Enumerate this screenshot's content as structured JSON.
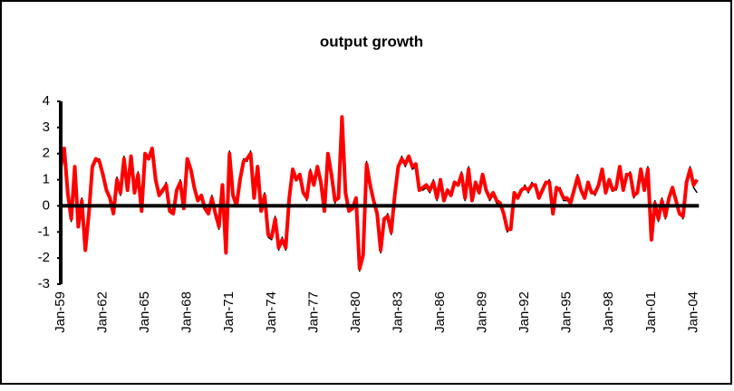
{
  "chart_data": {
    "type": "line",
    "title": "output growth",
    "categories": [
      "Jan-59",
      null,
      null,
      null,
      null,
      null,
      null,
      null,
      null,
      null,
      null,
      null,
      "Jan-62",
      null,
      null,
      null,
      null,
      null,
      null,
      null,
      null,
      null,
      null,
      null,
      "Jan-65",
      null,
      null,
      null,
      null,
      null,
      null,
      null,
      null,
      null,
      null,
      null,
      "Jan-68",
      null,
      null,
      null,
      null,
      null,
      null,
      null,
      null,
      null,
      null,
      null,
      "Jan-71",
      null,
      null,
      null,
      null,
      null,
      null,
      null,
      null,
      null,
      null,
      null,
      "Jan-74",
      null,
      null,
      null,
      null,
      null,
      null,
      null,
      null,
      null,
      null,
      null,
      "Jan-77",
      null,
      null,
      null,
      null,
      null,
      null,
      null,
      null,
      null,
      null,
      null,
      "Jan-80",
      null,
      null,
      null,
      null,
      null,
      null,
      null,
      null,
      null,
      null,
      null,
      "Jan-83",
      null,
      null,
      null,
      null,
      null,
      null,
      null,
      null,
      null,
      null,
      null,
      "Jan-86",
      null,
      null,
      null,
      null,
      null,
      null,
      null,
      null,
      null,
      null,
      null,
      "Jan-89",
      null,
      null,
      null,
      null,
      null,
      null,
      null,
      null,
      null,
      null,
      null,
      "Jan-92",
      null,
      null,
      null,
      null,
      null,
      null,
      null,
      null,
      null,
      null,
      null,
      "Jan-95",
      null,
      null,
      null,
      null,
      null,
      null,
      null,
      null,
      null,
      null,
      null,
      "Jan-98",
      null,
      null,
      null,
      null,
      null,
      null,
      null,
      null,
      null,
      null,
      null,
      "Jan-01",
      null,
      null,
      null,
      null,
      null,
      null,
      null,
      null,
      null,
      null,
      null,
      "Jan-04",
      null
    ],
    "series": [
      {
        "color": "#000000",
        "values": [
          1.7,
          2.1,
          0.4,
          -0.6,
          1.4,
          -0.7,
          0.3,
          -1.6,
          -0.2,
          1.4,
          1.7,
          1.8,
          1.3,
          0.7,
          0.2,
          -0.2,
          1.1,
          0.4,
          1.9,
          0.7,
          1.8,
          0.6,
          1.3,
          -0.1,
          1.9,
          1.9,
          2.1,
          1.1,
          0.5,
          0.5,
          0.9,
          -0.1,
          -0.2,
          0.5,
          1.0,
          0.0,
          1.7,
          1.5,
          0.6,
          0.3,
          0.3,
          0.0,
          -0.2,
          0.4,
          -0.4,
          -0.9,
          0.7,
          -1.7,
          2.1,
          0.5,
          0.1,
          0.9,
          1.8,
          1.7,
          2.1,
          0.4,
          1.4,
          -0.1,
          0.5,
          -1.2,
          -1.3,
          -0.4,
          -1.7,
          -1.2,
          -1.7,
          0.4,
          1.3,
          1.1,
          1.1,
          0.6,
          0.2,
          1.4,
          0.9,
          1.4,
          1.0,
          -0.1,
          1.9,
          1.3,
          0.1,
          0.4,
          3.3,
          0.6,
          -0.1,
          0.0,
          0.2,
          -2.5,
          -1.8,
          1.7,
          0.7,
          0.3,
          -0.2,
          -1.8,
          -0.6,
          -0.3,
          -1.1,
          0.5,
          1.4,
          1.9,
          1.5,
          1.8,
          1.4,
          1.5,
          0.7,
          0.6,
          0.7,
          0.5,
          1.0,
          0.2,
          0.9,
          0.3,
          0.5,
          0.5,
          0.8,
          0.9,
          1.3,
          0.2,
          1.5,
          0.3,
          0.8,
          0.6,
          1.1,
          0.7,
          0.2,
          0.4,
          0.1,
          0.0,
          -0.4,
          -1.0,
          -0.8,
          0.4,
          0.4,
          0.5,
          0.8,
          0.5,
          0.9,
          0.7,
          0.4,
          0.5,
          0.8,
          1.0,
          -0.2,
          0.6,
          0.7,
          0.2,
          0.2,
          0.2,
          0.5,
          1.2,
          0.5,
          0.4,
          0.8,
          0.6,
          0.4,
          0.9,
          1.3,
          0.6,
          0.9,
          0.7,
          0.6,
          1.4,
          0.7,
          1.1,
          1.3,
          0.3,
          0.6,
          1.3,
          0.7,
          1.5,
          -1.2,
          0.2,
          -0.6,
          0.3,
          -0.5,
          0.2,
          0.6,
          0.3,
          -0.2,
          -0.5,
          0.8,
          1.5,
          0.7,
          0.5
        ]
      },
      {
        "color": "#ff0000",
        "values": [
          1.5,
          2.2,
          0.5,
          -0.5,
          1.5,
          -0.8,
          0.2,
          -1.7,
          -0.3,
          1.5,
          1.8,
          1.7,
          1.2,
          0.6,
          0.3,
          -0.3,
          1.0,
          0.5,
          1.8,
          0.6,
          1.9,
          0.5,
          1.2,
          -0.2,
          2.0,
          1.8,
          2.2,
          1.0,
          0.4,
          0.6,
          0.8,
          -0.2,
          -0.3,
          0.6,
          0.9,
          -0.1,
          1.8,
          1.4,
          0.7,
          0.2,
          0.4,
          -0.1,
          -0.3,
          0.3,
          -0.3,
          -0.8,
          0.8,
          -1.8,
          2.0,
          0.4,
          0.0,
          1.0,
          1.7,
          1.8,
          2.0,
          0.3,
          1.5,
          -0.2,
          0.4,
          -1.1,
          -1.2,
          -0.5,
          -1.6,
          -1.3,
          -1.6,
          0.3,
          1.4,
          1.0,
          1.2,
          0.5,
          0.3,
          1.3,
          0.8,
          1.5,
          0.9,
          -0.2,
          2.0,
          1.2,
          0.2,
          0.3,
          3.4,
          0.5,
          -0.2,
          -0.1,
          0.3,
          -2.4,
          -1.9,
          1.6,
          0.8,
          0.2,
          -0.3,
          -1.7,
          -0.5,
          -0.4,
          -1.0,
          0.4,
          1.5,
          1.8,
          1.6,
          1.9,
          1.5,
          1.6,
          0.6,
          0.7,
          0.8,
          0.6,
          0.9,
          0.3,
          1.0,
          0.2,
          0.6,
          0.4,
          0.9,
          0.8,
          1.2,
          0.3,
          1.4,
          0.2,
          0.9,
          0.5,
          1.2,
          0.6,
          0.3,
          0.5,
          0.2,
          0.1,
          -0.3,
          -0.9,
          -0.9,
          0.5,
          0.3,
          0.6,
          0.7,
          0.6,
          0.8,
          0.8,
          0.3,
          0.6,
          0.9,
          0.9,
          -0.3,
          0.7,
          0.6,
          0.3,
          0.3,
          0.1,
          0.6,
          1.1,
          0.6,
          0.3,
          0.9,
          0.5,
          0.5,
          0.8,
          1.4,
          0.5,
          1.0,
          0.6,
          0.7,
          1.5,
          0.6,
          1.2,
          1.2,
          0.4,
          0.5,
          1.4,
          0.6,
          1.4,
          -1.3,
          0.1,
          -0.5,
          0.2,
          -0.4,
          0.3,
          0.7,
          0.2,
          -0.3,
          -0.4,
          0.9,
          1.4,
          0.8,
          1.0
        ]
      }
    ],
    "ylim": [
      -3,
      4
    ],
    "yticks": [
      -3,
      -2,
      -1,
      0,
      1,
      2,
      3,
      4
    ]
  }
}
